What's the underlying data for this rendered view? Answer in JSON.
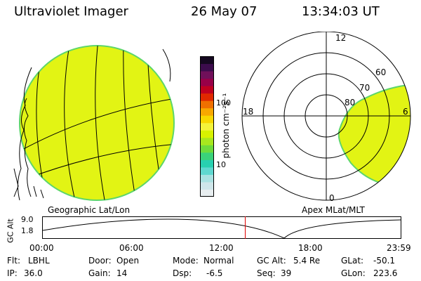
{
  "header": {
    "instrument": "Ultraviolet Imager",
    "date": "26 May 07",
    "time": "13:34:03 UT"
  },
  "left_panel": {
    "caption": "Geographic Lat/Lon"
  },
  "right_panel": {
    "caption": "Apex MLat/MLT",
    "mlt_labels": [
      "12",
      "18",
      "6",
      "0"
    ],
    "mlat_labels": [
      "60",
      "70",
      "80"
    ]
  },
  "colorbar": {
    "unit_label": "photon cm⁻²s⁻¹",
    "ticks": [
      "100",
      "10"
    ],
    "colors": [
      "#e8eef0",
      "#cfe6ea",
      "#a9e2e2",
      "#5fd8d0",
      "#28d0b0",
      "#3ad27a",
      "#6edc3c",
      "#a8e81e",
      "#d8f200",
      "#f4f43a",
      "#f8d800",
      "#f8a800",
      "#f07000",
      "#e02800",
      "#c00020",
      "#980048",
      "#70105a",
      "#3c0c4c",
      "#150820"
    ]
  },
  "timeline": {
    "axis_title": "GC Alt",
    "y_ticks": [
      "9.0",
      "1.8"
    ],
    "x_ticks": [
      "00:00",
      "06:00",
      "12:00",
      "18:00",
      "23:59"
    ],
    "marker_time_hours": 13.57,
    "marker_color": "#e00000"
  },
  "status": {
    "flt_label": "Flt:",
    "flt_value": "LBHL",
    "ip_label": "IP:",
    "ip_value": "36.0",
    "door_label": "Door:",
    "door_value": "Open",
    "gain_label": "Gain:",
    "gain_value": "14",
    "mode_label": "Mode:",
    "mode_value": "Normal",
    "dsp_label": "Dsp:",
    "dsp_value": "-6.5",
    "gcalt_label": "GC Alt:",
    "gcalt_value": "5.4 Re",
    "seq_label": "Seq:",
    "seq_value": "39",
    "glat_label": "GLat:",
    "glat_value": "-50.1",
    "glon_label": "GLon:",
    "glon_value": "223.6"
  },
  "colors": {
    "image_fill": "#e2f414",
    "image_edge": "#5dd66a",
    "grid": "#000000"
  }
}
